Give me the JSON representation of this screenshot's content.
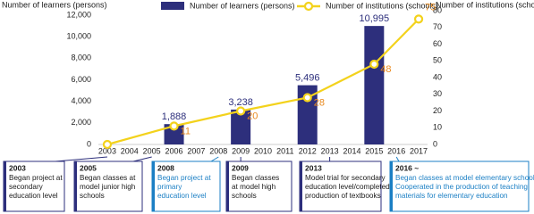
{
  "chart_data": {
    "type": "bar-line",
    "y_label": "Number of learners (persons)",
    "y2_label": "Number of institutions (schools)",
    "xticks": [
      2003,
      2004,
      2005,
      2006,
      2007,
      2008,
      2009,
      2010,
      2011,
      2012,
      2013,
      2014,
      2015,
      2016,
      2017
    ],
    "xlim": [
      2002.6,
      2017.4
    ],
    "ylim": [
      0,
      12000
    ],
    "yticks": [
      0,
      {
        "value": 2000,
        "label": "2,000"
      },
      {
        "value": 4000,
        "label": "4,000"
      },
      {
        "value": 6000,
        "label": "6,000"
      },
      {
        "value": 8000,
        "label": "8,000"
      },
      {
        "value": 10000,
        "label": "10,000"
      },
      {
        "value": 12000,
        "label": "12,000"
      }
    ],
    "y2lim": [
      0,
      80
    ],
    "y2ticks": [
      0,
      10,
      20,
      30,
      40,
      50,
      60,
      70,
      80
    ],
    "series": [
      {
        "name": "Number of learners (persons)",
        "type": "bar",
        "color": "#2d2f7c",
        "label_color": "#2d2f7c",
        "x": [
          2006,
          2009,
          2012,
          2015
        ],
        "values": [
          1888,
          3238,
          5496,
          10995
        ],
        "value_labels": [
          "1,888",
          "3,238",
          "5,496",
          "10,995"
        ]
      },
      {
        "name": "Number of institutions (schools)",
        "type": "line",
        "axis": "y2",
        "color": "#f3d21c",
        "label_color": "#e98a1f",
        "x": [
          2003,
          2006,
          2009,
          2012,
          2015,
          2017
        ],
        "values": [
          0,
          11,
          20,
          28,
          48,
          75
        ],
        "value_labels": [
          null,
          "11",
          "20",
          "28",
          "48",
          "75"
        ]
      }
    ],
    "annotations": [
      {
        "year": "2003",
        "color": "#2d2f7c",
        "lines": [
          "Began project at",
          "secondary",
          "education level"
        ]
      },
      {
        "year": "2005",
        "color": "#2d2f7c",
        "lines": [
          "Began classes at",
          "model junior high",
          "schools"
        ]
      },
      {
        "year": "2008",
        "color": "#1b7fc4",
        "lines": [
          "Began project at",
          "primary",
          "education level"
        ]
      },
      {
        "year": "2009",
        "color": "#2d2f7c",
        "lines": [
          "Began classes",
          "at model high",
          "schools"
        ]
      },
      {
        "year": "2013",
        "color": "#2d2f7c",
        "lines": [
          "Model trial for secondary",
          "education level/completed",
          "production of textbooks"
        ]
      },
      {
        "year": "2016 ~",
        "color": "#1b7fc4",
        "lines": [
          "Began classes at model elementary schools",
          "Cooperated in the production of teaching",
          "materials for elementary education"
        ]
      }
    ]
  }
}
